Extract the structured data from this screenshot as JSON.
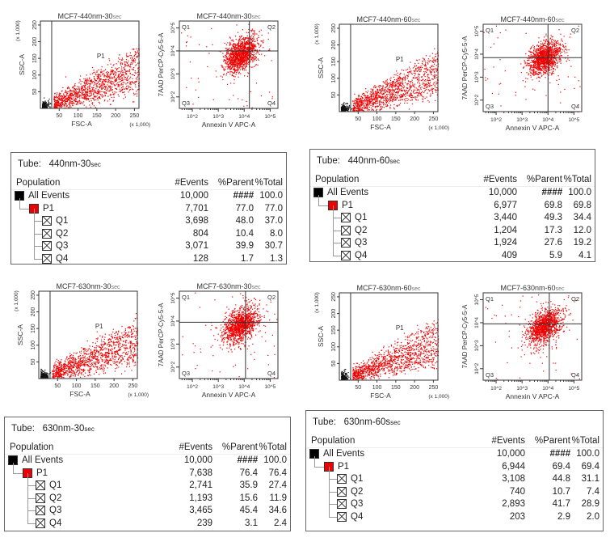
{
  "panels": [
    {
      "title": "MCF7-440nm-30",
      "title_suffix": "sec",
      "tube_label": "Tube:",
      "tube": "440nm-30",
      "tube_suffix": "sec",
      "rows": [
        [
          "All Events",
          "10,000",
          "####",
          "100.0"
        ],
        [
          "P1",
          "7,701",
          "77.0",
          "77.0"
        ],
        [
          "Q1",
          "3,698",
          "48.0",
          "37.0"
        ],
        [
          "Q2",
          "804",
          "10.4",
          "8.0"
        ],
        [
          "Q3",
          "3,071",
          "39.9",
          "30.7"
        ],
        [
          "Q4",
          "128",
          "1.7",
          "1.3"
        ]
      ]
    },
    {
      "title": "MCF7-440nm-60",
      "title_suffix": "sec",
      "tube_label": "Tube:",
      "tube": "440nm-60",
      "tube_suffix": "sec",
      "rows": [
        [
          "All Events",
          "10,000",
          "####",
          "100.0"
        ],
        [
          "P1",
          "6,977",
          "69.8",
          "69.8"
        ],
        [
          "Q1",
          "3,440",
          "49.3",
          "34.4"
        ],
        [
          "Q2",
          "1,204",
          "17.3",
          "12.0"
        ],
        [
          "Q3",
          "1,924",
          "27.6",
          "19.2"
        ],
        [
          "Q4",
          "409",
          "5.9",
          "4.1"
        ]
      ]
    },
    {
      "title": "MCF7-630nm-30",
      "title_suffix": "sec",
      "tube_label": "Tube:",
      "tube": "630nm-30",
      "tube_suffix": "sec",
      "rows": [
        [
          "All Events",
          "10,000",
          "####",
          "100.0"
        ],
        [
          "P1",
          "7,638",
          "76.4",
          "76.4"
        ],
        [
          "Q1",
          "2,741",
          "35.9",
          "27.4"
        ],
        [
          "Q2",
          "1,193",
          "15.6",
          "11.9"
        ],
        [
          "Q3",
          "3,465",
          "45.4",
          "34.6"
        ],
        [
          "Q4",
          "239",
          "3.1",
          "2.4"
        ]
      ]
    },
    {
      "title": "MCF7-630nm-60",
      "title_suffix": "sec",
      "tube_label": "Tube:",
      "tube": "630nm-60s",
      "tube_suffix": "sec",
      "rows": [
        [
          "All Events",
          "10,000",
          "####",
          "100.0"
        ],
        [
          "P1",
          "6,944",
          "69.4",
          "69.4"
        ],
        [
          "Q1",
          "3,108",
          "44.8",
          "31.1"
        ],
        [
          "Q2",
          "740",
          "10.7",
          "7.4"
        ],
        [
          "Q3",
          "2,893",
          "41.7",
          "28.9"
        ],
        [
          "Q4",
          "203",
          "2.9",
          "2.0"
        ]
      ]
    }
  ],
  "table_headers": [
    "Population",
    "#Events",
    "%Parent",
    "%Total"
  ],
  "chart_data": {
    "scatter_fsc_ssc": {
      "type": "scatter",
      "xlabel": "FSC-A",
      "ylabel": "SSC-A",
      "x_unit": "(x 1,000)",
      "y_unit": "(x 1,000)",
      "xlim": [
        0,
        262
      ],
      "ylim": [
        0,
        262
      ],
      "xticks": [
        50,
        100,
        150,
        200,
        250
      ],
      "yticks": [
        50,
        100,
        150,
        200,
        250
      ],
      "gate_label": "P1",
      "gate_fsc": 30,
      "colors": {
        "gated": "#ee0000",
        "debris": "#111111"
      }
    },
    "scatter_annexin_7aad": {
      "type": "scatter",
      "xlabel": "Annexin V APC-A",
      "ylabel": "7AAD PerCP-Cy5-5-A",
      "scale": "log",
      "xticks": [
        "10^2",
        "10^3",
        "10^4",
        "10^5"
      ],
      "yticks": [
        "10^2",
        "10^3",
        "10^4",
        "10^5"
      ],
      "quadrants": [
        "Q1",
        "Q2",
        "Q3",
        "Q4"
      ],
      "color": "#ee0000"
    }
  }
}
